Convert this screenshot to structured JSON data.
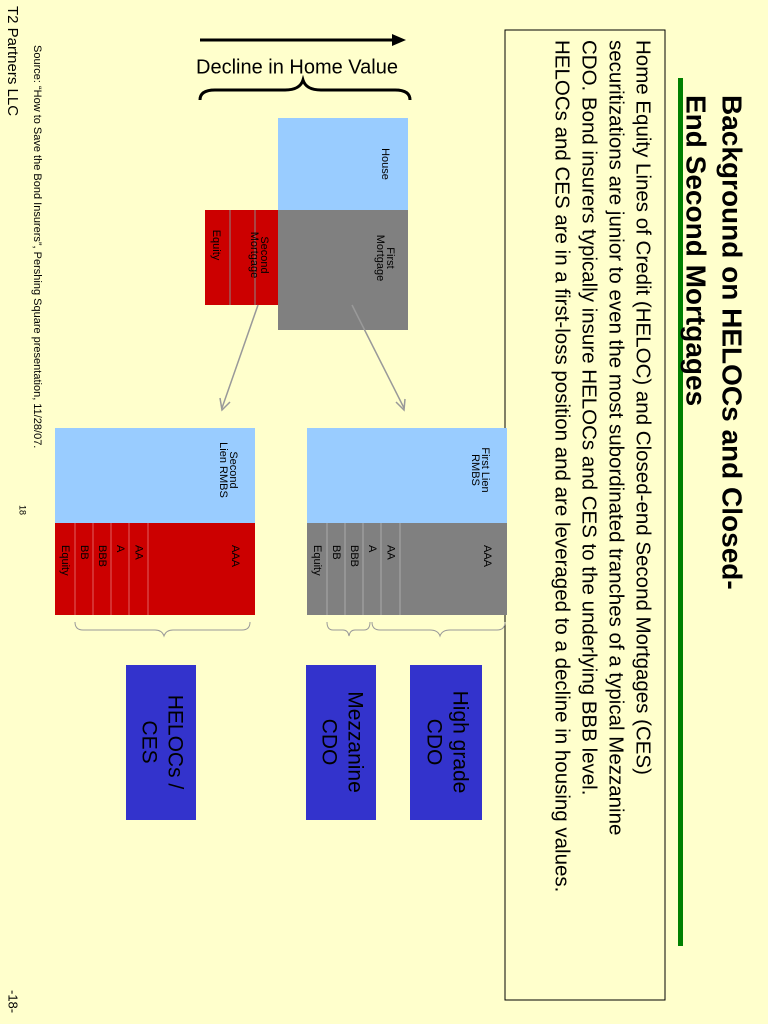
{
  "title": [
    "Background on HELOCs and Closed-",
    "End Second Mortgages"
  ],
  "body": [
    "Home Equity Lines of Credit (HELOC) and Closed-end Second Mortgages (CES)",
    "securitizations are junior to even the most subordinated tranches of a typical Mezzanine",
    "CDO.  Bond insurers typically insure HELOCs and CES to the underlying BBB level.",
    "HELOCs and CES are in a first-loss position and are leveraged to a decline in housing values."
  ],
  "decline_label": "Decline in Home Value",
  "house": {
    "house": "House",
    "first_mortgage": [
      "First",
      "Mortgage"
    ],
    "second_mortgage": [
      "Second",
      "Mortgage"
    ],
    "equity": "Equity"
  },
  "first_lien": {
    "label": [
      "First Lien",
      "RMBS"
    ],
    "tranches": [
      "AAA",
      "AA",
      "A",
      "BBB",
      "BB",
      "Equity"
    ]
  },
  "second_lien": {
    "label": [
      "Second",
      "Lien RMBS"
    ],
    "tranches": [
      "AAA",
      "AA",
      "A",
      "BBB",
      "BB",
      "Equity"
    ]
  },
  "cdos": [
    [
      "High grade",
      "CDO"
    ],
    [
      "Mezzanine",
      "CDO"
    ],
    [
      "HELOCs /",
      "CES"
    ]
  ],
  "footer": {
    "source": "Source: “How to Save the Bond Insurers”, Pershing Square presentation, 11/28/07.",
    "page_small": "18",
    "company": "T2 Partners LLC",
    "page": "-18-"
  }
}
